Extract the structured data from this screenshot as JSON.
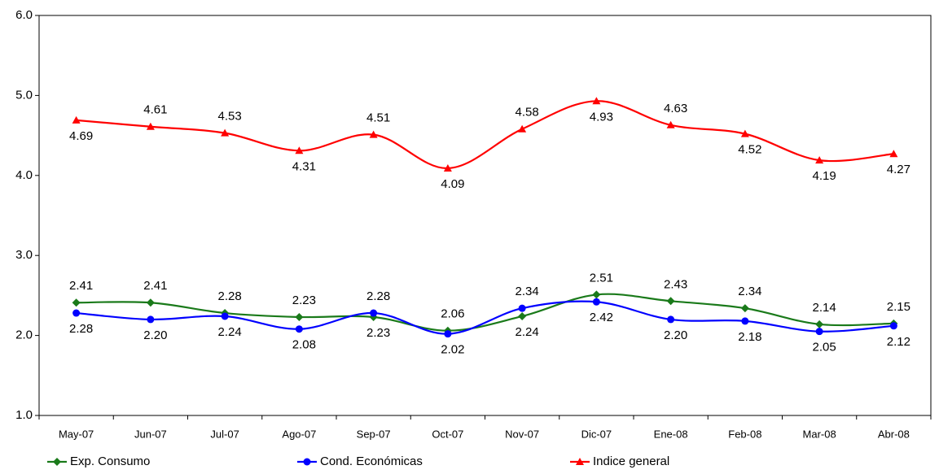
{
  "chart_data": {
    "type": "line",
    "categories": [
      "May-07",
      "Jun-07",
      "Jul-07",
      "Ago-07",
      "Sep-07",
      "Oct-07",
      "Nov-07",
      "Dic-07",
      "Ene-08",
      "Feb-08",
      "Mar-08",
      "Abr-08"
    ],
    "series": [
      {
        "name": "Exp. Consumo",
        "color": "#1a7a1a",
        "marker": "diamond",
        "values": [
          2.41,
          2.41,
          2.28,
          2.23,
          2.23,
          2.06,
          2.24,
          2.51,
          2.43,
          2.34,
          2.14,
          2.15
        ],
        "value_labels": [
          "2.41",
          "2.41",
          "2.28",
          "2.23",
          "2.23",
          "2.06",
          "2.24",
          "2.51",
          "2.43",
          "2.34",
          "2.14",
          "2.15"
        ]
      },
      {
        "name": "Cond. Económicas",
        "color": "#0000ff",
        "marker": "circle",
        "values": [
          2.28,
          2.2,
          2.24,
          2.08,
          2.28,
          2.02,
          2.34,
          2.42,
          2.2,
          2.18,
          2.05,
          2.12
        ],
        "value_labels": [
          "2.28",
          "2.20",
          "2.24",
          "2.08",
          "2.28",
          "2.02",
          "2.34",
          "2.42",
          "2.20",
          "2.18",
          "2.05",
          "2.12"
        ]
      },
      {
        "name": "Indice general",
        "color": "#ff0000",
        "marker": "triangle",
        "values": [
          4.69,
          4.61,
          4.53,
          4.31,
          4.51,
          4.09,
          4.58,
          4.93,
          4.63,
          4.52,
          4.19,
          4.27
        ],
        "value_labels": [
          "4.69",
          "4.61",
          "4.53",
          "4.31",
          "4.51",
          "4.09",
          "4.58",
          "4.93",
          "4.63",
          "4.52",
          "4.19",
          "4.27"
        ]
      }
    ],
    "ylim": [
      1,
      6
    ],
    "yticks": [
      {
        "value": 1,
        "label": "1.0"
      },
      {
        "value": 2,
        "label": "2.0"
      },
      {
        "value": 3,
        "label": "3.0"
      },
      {
        "value": 4,
        "label": "4.0"
      },
      {
        "value": 5,
        "label": "5.0"
      },
      {
        "value": 6,
        "label": "6.0"
      }
    ],
    "grid": false,
    "legend": "bottom"
  }
}
